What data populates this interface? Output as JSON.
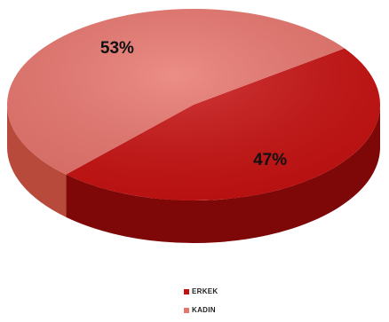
{
  "chart_data": {
    "type": "pie",
    "style": "3d",
    "slices": [
      {
        "label": "ERKEK",
        "value": 47,
        "display": "47%",
        "color": "#c80f0f",
        "side_color": "#7e0707"
      },
      {
        "label": "KADIN",
        "value": 53,
        "display": "53%",
        "color": "#e8746c",
        "side_color": "#b84a3c"
      }
    ],
    "legend_position": "bottom"
  },
  "colors": {
    "background": "#ffffff",
    "label_text": "#111111",
    "legend_text": "#222222"
  }
}
